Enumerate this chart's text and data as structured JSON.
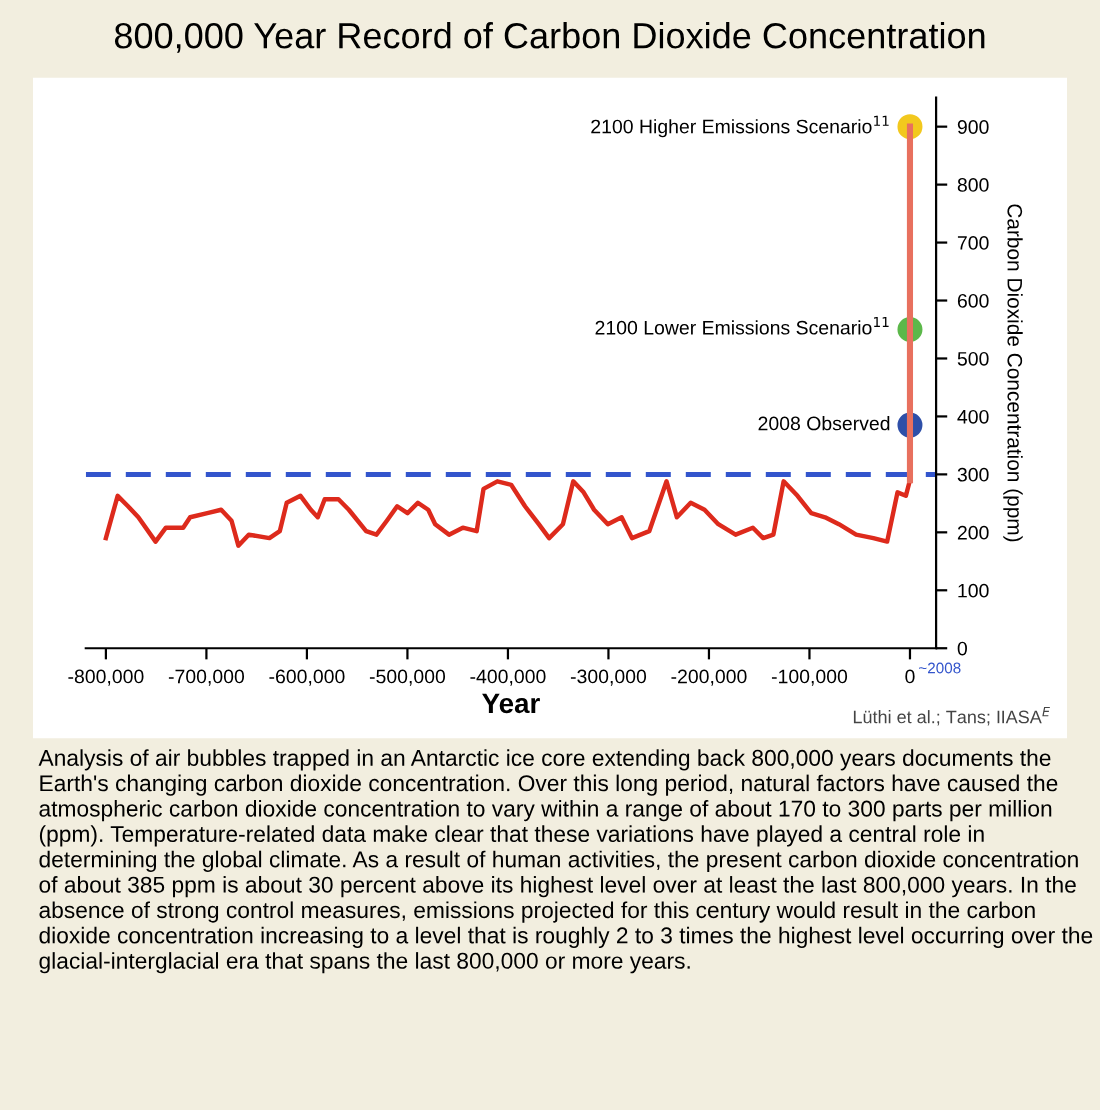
{
  "chart_data": {
    "type": "line",
    "title": "800,000 Year Record of Carbon Dioxide Concentration",
    "xlabel": "Year",
    "ylabel": "Carbon Dioxide Concentration (ppm)",
    "xlim": [
      -820000,
      26000
    ],
    "ylim": [
      0,
      950
    ],
    "xticks": [
      {
        "value": -800000,
        "label": "-800,000"
      },
      {
        "value": -700000,
        "label": "-700,000"
      },
      {
        "value": -600000,
        "label": "-600,000"
      },
      {
        "value": -500000,
        "label": "-500,000"
      },
      {
        "value": -400000,
        "label": "-400,000"
      },
      {
        "value": -300000,
        "label": "-300,000"
      },
      {
        "value": -200000,
        "label": "-200,000"
      },
      {
        "value": -100000,
        "label": "-100,000"
      },
      0
    ],
    "yticks": [
      0,
      100,
      200,
      300,
      400,
      500,
      600,
      700,
      800,
      900
    ],
    "grid": false,
    "legend": false,
    "series": [
      {
        "color": "#dd2a1c",
        "x": [
          -800000,
          -788300,
          -778000,
          -767700,
          -750600,
          -740300,
          -723100,
          -716200,
          -699100,
          -685300,
          -675000,
          -668200,
          -657900,
          -637300,
          -627000,
          -620100,
          -606400,
          -596100,
          -589200,
          -582300,
          -568600,
          -558300,
          -541100,
          -530800,
          -520500,
          -510200,
          -499900,
          -489600,
          -479300,
          -472400,
          -458600,
          -444900,
          -431100,
          -424300,
          -410500,
          -396800,
          -383000,
          -369300,
          -359000,
          -345300,
          -335000,
          -324700,
          -314300,
          -300600,
          -286900,
          -276600,
          -259400,
          -242200,
          -231900,
          -218200,
          -204400,
          -190700,
          -173500,
          -156300,
          -146000,
          -135900,
          -125700,
          -111900,
          -98200,
          -84500,
          -70700,
          -53600,
          -36400,
          -22700,
          -12400,
          -4100,
          0
        ],
        "values": [
          190,
          263,
          245,
          226,
          184,
          208,
          208,
          226,
          233,
          239,
          220,
          177,
          196,
          190,
          202,
          251,
          263,
          239,
          226,
          257,
          257,
          239,
          202,
          196,
          220,
          245,
          233,
          251,
          239,
          214,
          196,
          208,
          202,
          275,
          288,
          282,
          245,
          214,
          190,
          214,
          288,
          269,
          239,
          214,
          226,
          190,
          202,
          288,
          226,
          251,
          239,
          214,
          196,
          208,
          190,
          196,
          288,
          263,
          233,
          226,
          214,
          196,
          190,
          184,
          269,
          263,
          290
        ]
      },
      {
        "color": "#e8705e",
        "x": [
          0,
          0
        ],
        "values": [
          290,
          900
        ]
      },
      {
        "type": "scatter",
        "name": "2008 Observed",
        "color": "#2e4fa8",
        "x": [
          0
        ],
        "values": [
          385
        ]
      },
      {
        "type": "scatter",
        "name": "2100 Lower Emissions Scenario$^{11}$",
        "color": "#5cb84a",
        "x": [
          0
        ],
        "values": [
          550
        ]
      },
      {
        "type": "scatter",
        "name": "2100 Higher Emissions Scenario$^{11}$",
        "color": "#f2c81e",
        "x": [
          0
        ],
        "values": [
          900
        ]
      }
    ],
    "ref_lines": [
      {
        "axis": "y",
        "value": 300,
        "color": "#3355cc",
        "line_style": "dashed"
      }
    ],
    "annotations": [
      "~2008",
      "Lüthi et al.; Tans; IIASA$^{E}$",
      "Analysis of air bubbles trapped in an Antarctic ice core extending back 800,000 years documents the Earth's changing carbon dioxide concentration. Over this long period, natural factors have caused the atmospheric carbon dioxide concentration to vary within a range of about 170 to 300 parts per million (ppm). Temperature-related data make clear that these variations have played a central role in determining the global climate. As a result of human activities, the present carbon dioxide concentration of about 385 ppm is about 30 percent above its highest level over at least the last 800,000 years. In the absence of strong control measures, emissions projected for this century would result in the carbon dioxide concentration increasing to a level that is roughly 2 to 3 times the highest level occurring over the glacial-interglacial era that spans the last 800,000 or more years."
    ]
  }
}
